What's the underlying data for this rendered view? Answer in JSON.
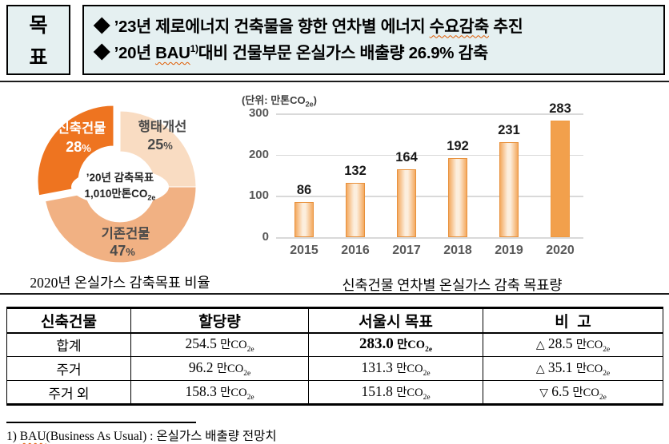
{
  "header": {
    "label_chars": [
      "목",
      "표"
    ],
    "bullets": [
      {
        "pre": "◆ ’23년 제로에너지 건축물을 향한 연차별 에너지 ",
        "wavy": "수요감축",
        "sup": "",
        "post": " 추진"
      },
      {
        "pre": "◆ ’20년 ",
        "wavy": "BAU",
        "sup": "1)",
        "post": "대비 건물부문 온실가스 배출량 26.9% 감축"
      }
    ]
  },
  "donut": {
    "caption": "2020년 온실가스 감축목표 비율",
    "center": {
      "line1": "’20년 감축목표",
      "line2": "1,010만톤CO",
      "sub": "2e"
    },
    "pct_sign": "%",
    "slices": [
      {
        "name": "신축건물",
        "pct": "28",
        "color": "#ee7420",
        "text_color": "#ffffff"
      },
      {
        "name": "행태개선",
        "pct": "25",
        "color": "#f9dcc2",
        "text_color": "#4a4a4a"
      },
      {
        "name": "기존건물",
        "pct": "47",
        "color": "#f1b183",
        "text_color": "#4a4a4a"
      }
    ]
  },
  "bar_chart": {
    "caption": "신축건물 연차별 온실가스 감축 목표량",
    "unit_pre": "(단위: 만톤CO",
    "unit_sub": "2e",
    "unit_post": ")"
  },
  "chart_data": [
    {
      "type": "pie",
      "title": "2020년 온실가스 감축목표 비율",
      "labels": [
        "신축건물",
        "행태개선",
        "기존건물"
      ],
      "values": [
        28,
        25,
        47
      ],
      "unit": "%",
      "colors": [
        "#ee7420",
        "#f9dcc2",
        "#f1b183"
      ],
      "center_label": "’20년 감축목표 1,010만톤CO2e",
      "donut": true,
      "order_clockwise_from_top": [
        "행태개선",
        "기존건물",
        "신축건물"
      ],
      "exploded_slice": "신축건물"
    },
    {
      "type": "bar",
      "title": "신축건물 연차별 온실가스 감축 목표량",
      "unit_label": "(단위: 만톤CO2e)",
      "categories": [
        "2015",
        "2016",
        "2017",
        "2018",
        "2019",
        "2020"
      ],
      "values": [
        86,
        132,
        164,
        192,
        231,
        283
      ],
      "ylim": [
        0,
        300
      ],
      "yticks": [
        0,
        100,
        200,
        300
      ],
      "grid": true,
      "legend": false,
      "highlight_category": "2020"
    }
  ],
  "table": {
    "headers": [
      "신축건물",
      "할당량",
      "서울시 목표",
      "비  고"
    ],
    "unit": "만CO",
    "unit_sub": "2e",
    "rows": [
      {
        "label": "합계",
        "alloc": "254.5",
        "seoul": "283.0",
        "seoul_bold": true,
        "note_sym": "△",
        "note": "28.5"
      },
      {
        "label": "주거",
        "alloc": "96.2",
        "seoul": "131.3",
        "seoul_bold": false,
        "note_sym": "△",
        "note": "35.1"
      },
      {
        "label": "주거 외",
        "alloc": "158.3",
        "seoul": "151.8",
        "seoul_bold": false,
        "note_sym": "▽",
        "note": "6.5"
      }
    ]
  },
  "footnote": {
    "pre": "1) ",
    "wavy": "BAU",
    "post": "(Business As Usual) : 온실가스 배출량 전망치"
  },
  "colors": {
    "header_bg": "#e5f0f1",
    "accent_orange": "#ee7420",
    "slice_light": "#f9dcc2",
    "slice_mid": "#f1b183",
    "bar_border": "#e8913c",
    "bar_solid": "#f2a04c",
    "gridline": "#d9d9d9",
    "axis_text": "#595959",
    "spellcheck_wave": "#e05a00"
  }
}
